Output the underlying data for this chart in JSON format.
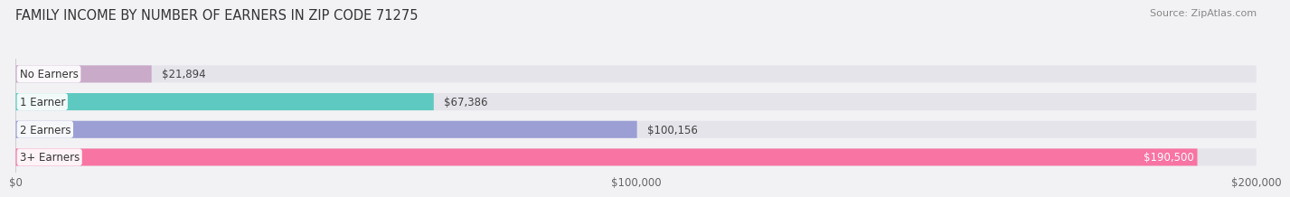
{
  "title": "FAMILY INCOME BY NUMBER OF EARNERS IN ZIP CODE 71275",
  "source": "Source: ZipAtlas.com",
  "categories": [
    "No Earners",
    "1 Earner",
    "2 Earners",
    "3+ Earners"
  ],
  "values": [
    21894,
    67386,
    100156,
    190500
  ],
  "value_labels": [
    "$21,894",
    "$67,386",
    "$100,156",
    "$190,500"
  ],
  "bar_colors": [
    "#c9aac8",
    "#5dc9c0",
    "#9b9fd4",
    "#f874a2"
  ],
  "track_color": "#e4e4ea",
  "xlim": [
    0,
    200000
  ],
  "xticks": [
    0,
    100000,
    200000
  ],
  "xticklabels": [
    "$0",
    "$100,000",
    "$200,000"
  ],
  "background_color": "#f2f2f5",
  "bar_height": 0.62,
  "title_fontsize": 10.5,
  "source_fontsize": 8,
  "label_fontsize": 8.5,
  "value_fontsize": 8.5,
  "tick_fontsize": 8.5
}
